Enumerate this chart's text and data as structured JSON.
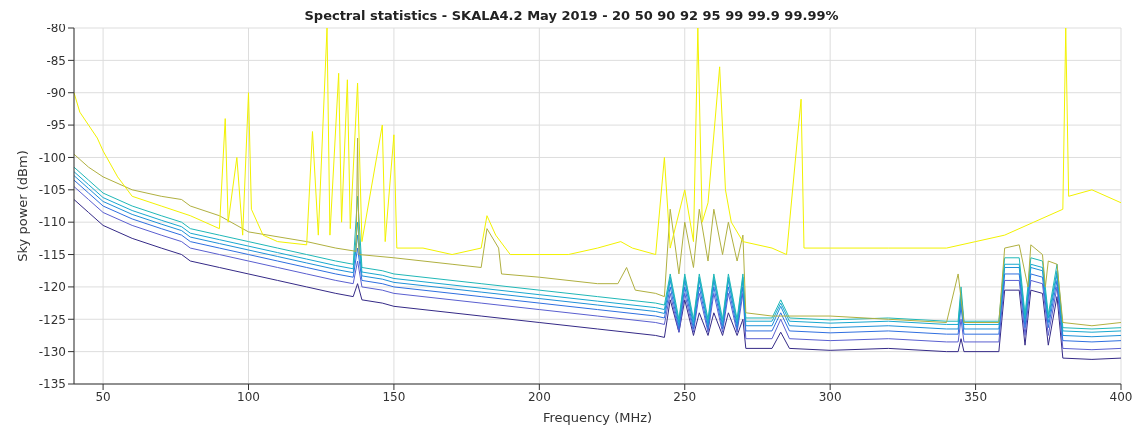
{
  "chart_data": {
    "type": "line",
    "title": "Spectral statistics - SKALA4.2 May 2019 - 20 50 90 92 95 99 99.9 99.99%",
    "xlabel": "Frequency (MHz)",
    "ylabel": "Sky power (dBm)",
    "xlim": [
      40,
      400
    ],
    "xticks": [
      50,
      100,
      150,
      200,
      250,
      300,
      350,
      400
    ],
    "ylim": [
      -135,
      -80
    ],
    "yticks": [
      -135,
      -130,
      -125,
      -120,
      -115,
      -110,
      -105,
      -100,
      -95,
      -90,
      -85,
      -80
    ],
    "grid": true,
    "legend": false,
    "marker": "none",
    "line_style": "solid",
    "x": [
      40,
      45,
      50,
      60,
      70,
      77,
      80,
      90,
      95,
      100,
      110,
      120,
      130,
      136,
      137.5,
      139,
      146,
      150,
      180,
      200,
      220,
      240,
      243,
      245,
      248,
      250,
      253,
      255,
      258,
      260,
      263,
      265,
      268,
      270,
      271,
      280,
      283,
      286,
      300,
      320,
      340,
      344,
      345,
      346,
      358,
      360,
      365,
      367,
      369,
      373,
      375,
      378,
      380,
      390,
      400
    ],
    "series": [
      {
        "color": "#352a87",
        "values": [
          -106.5,
          -108.5,
          -110.5,
          -112.5,
          -114,
          -115,
          -116,
          -117,
          -117.5,
          -118,
          -119,
          -120,
          -121,
          -121.5,
          -119.5,
          -122,
          -122.5,
          -123,
          -124.5,
          -125.5,
          -126.5,
          -127.5,
          -127.8,
          -122,
          -127,
          -122,
          -127.5,
          -124,
          -127.5,
          -124,
          -127.5,
          -124,
          -127.5,
          -125,
          -129.5,
          -129.5,
          -127,
          -129.5,
          -129.8,
          -129.5,
          -130,
          -130,
          -128,
          -130,
          -130,
          -120.5,
          -120.5,
          -129,
          -120.5,
          -121,
          -129,
          -121.5,
          -131,
          -131.2,
          -131
        ]
      },
      {
        "color": "#5a5fd0",
        "values": [
          -104.5,
          -106.5,
          -108.5,
          -110.5,
          -112,
          -113,
          -114,
          -115,
          -115.5,
          -116,
          -117,
          -118,
          -119,
          -119.5,
          -116,
          -120,
          -120.5,
          -121,
          -122.5,
          -123.5,
          -124.5,
          -125.5,
          -125.8,
          -121,
          -127,
          -121,
          -127,
          -121,
          -127,
          -121,
          -127,
          -121,
          -127,
          -121,
          -128,
          -128,
          -125,
          -128,
          -128.3,
          -128,
          -128.5,
          -128.5,
          -125,
          -128.5,
          -128.5,
          -119,
          -119,
          -127.5,
          -119,
          -119.5,
          -127.5,
          -120,
          -129.5,
          -129.7,
          -129.5
        ]
      },
      {
        "color": "#2f6fe0",
        "values": [
          -103.5,
          -105.5,
          -107.5,
          -109.5,
          -111,
          -112,
          -113,
          -114,
          -114.5,
          -115,
          -116,
          -117,
          -118,
          -118.5,
          -114,
          -119,
          -119.5,
          -120,
          -121.5,
          -122.5,
          -123.5,
          -124.5,
          -124.8,
          -120,
          -126.5,
          -120,
          -126.5,
          -120,
          -126.5,
          -120,
          -126.5,
          -120,
          -126.5,
          -120,
          -126.8,
          -126.8,
          -124,
          -126.8,
          -127.1,
          -126.8,
          -127.3,
          -127.3,
          -123,
          -127.3,
          -127.3,
          -118,
          -118,
          -126.3,
          -118,
          -118.5,
          -126.3,
          -119,
          -128.3,
          -128.5,
          -128.3
        ]
      },
      {
        "color": "#1e90d8",
        "values": [
          -102.8,
          -104.8,
          -106.8,
          -108.8,
          -110.3,
          -111.3,
          -112.3,
          -113.3,
          -113.8,
          -114.3,
          -115.3,
          -116.3,
          -117.3,
          -117.8,
          -112,
          -118.3,
          -118.8,
          -119.3,
          -120.8,
          -121.8,
          -122.8,
          -123.8,
          -124.1,
          -119,
          -126,
          -119,
          -126,
          -119,
          -126,
          -119,
          -126,
          -119,
          -126,
          -119,
          -126,
          -126,
          -123,
          -126,
          -126.3,
          -126,
          -126.5,
          -126.5,
          -122,
          -126.5,
          -126.5,
          -117,
          -117,
          -125.5,
          -117,
          -117.5,
          -125.5,
          -118,
          -127.5,
          -127.7,
          -127.5
        ]
      },
      {
        "color": "#18a8d0",
        "values": [
          -102.2,
          -104.2,
          -106.2,
          -108.2,
          -109.7,
          -110.7,
          -111.7,
          -112.7,
          -113.2,
          -113.7,
          -114.7,
          -115.7,
          -116.7,
          -117.2,
          -110,
          -117.7,
          -118.2,
          -118.7,
          -120.2,
          -121.2,
          -122.2,
          -123.2,
          -123.5,
          -118.5,
          -125.5,
          -118.5,
          -125.5,
          -118.5,
          -125.5,
          -118.5,
          -125.5,
          -118.5,
          -125.5,
          -118.5,
          -125.3,
          -125.3,
          -122.5,
          -125.3,
          -125.6,
          -125.3,
          -125.8,
          -125.8,
          -121,
          -125.8,
          -125.8,
          -116.5,
          -116.5,
          -124.8,
          -116.5,
          -117,
          -124.8,
          -117.5,
          -126.8,
          -127,
          -126.8
        ]
      },
      {
        "color": "#20b8b8",
        "values": [
          -101.5,
          -103.5,
          -105.5,
          -107.5,
          -109,
          -110,
          -111,
          -112,
          -112.5,
          -113,
          -114,
          -115,
          -116,
          -116.5,
          -106,
          -117,
          -117.5,
          -118,
          -119.5,
          -120.5,
          -121.5,
          -122.5,
          -122.8,
          -118,
          -125,
          -118,
          -125,
          -118,
          -125,
          -118,
          -125,
          -118,
          -125,
          -118,
          -124.8,
          -124.8,
          -122,
          -124.8,
          -125.1,
          -124.8,
          -125.3,
          -125.3,
          -120,
          -125.3,
          -125.3,
          -115.5,
          -115.5,
          -124.3,
          -115.5,
          -116,
          -124.3,
          -116.5,
          -126.3,
          -126.5,
          -126.3
        ]
      },
      {
        "color": "#b0b040",
        "x": [
          40,
          45,
          50,
          60,
          70,
          77,
          80,
          90,
          100,
          120,
          130,
          137,
          137.5,
          138,
          150,
          170,
          180,
          182,
          186,
          187,
          200,
          220,
          227,
          230,
          233,
          240,
          243,
          245,
          248,
          250,
          253,
          255,
          258,
          260,
          263,
          265,
          268,
          270,
          271,
          280,
          300,
          320,
          340,
          344,
          346,
          358,
          360,
          365,
          368,
          369,
          373,
          374,
          375,
          378,
          380,
          390,
          400
        ],
        "values": [
          -99.5,
          -101.5,
          -103,
          -105,
          -106,
          -106.5,
          -107.5,
          -109,
          -111.5,
          -113,
          -114,
          -114.5,
          -97,
          -115,
          -115.5,
          -116.5,
          -117,
          -111,
          -114,
          -118,
          -118.5,
          -119.5,
          -119.5,
          -117,
          -120.5,
          -121,
          -121.5,
          -108,
          -118,
          -110,
          -117,
          -108,
          -116,
          -108,
          -115,
          -110,
          -116,
          -112,
          -124,
          -124.5,
          -124.5,
          -125,
          -125.5,
          -118,
          -125.5,
          -125.5,
          -114,
          -113.5,
          -120,
          -113.5,
          -115,
          -120,
          -116,
          -116.5,
          -125.5,
          -126,
          -125.5
        ]
      },
      {
        "color": "#f2f200",
        "x": [
          40,
          42,
          45,
          48,
          50,
          55,
          60,
          70,
          80,
          90,
          92,
          93,
          96,
          98,
          100,
          101,
          105,
          110,
          120,
          122,
          124,
          127,
          128,
          131,
          132,
          134,
          135,
          137.5,
          139,
          146,
          147,
          150,
          151,
          160,
          170,
          180,
          182,
          185,
          190,
          200,
          210,
          220,
          228,
          232,
          240,
          243,
          245,
          250,
          253,
          254.5,
          256,
          258,
          262,
          264,
          266,
          270,
          280,
          285,
          290,
          291,
          300,
          320,
          340,
          350,
          360,
          370,
          380,
          381,
          382,
          390,
          400
        ],
        "values": [
          -90,
          -93,
          -95,
          -97,
          -99,
          -103,
          -106,
          -107.5,
          -109,
          -111,
          -94,
          -110,
          -100,
          -112,
          -90,
          -108,
          -112,
          -113,
          -113.5,
          -96,
          -112,
          -80,
          -112,
          -87,
          -110,
          -88,
          -111,
          -88.5,
          -113,
          -95,
          -113,
          -96.5,
          -114,
          -114,
          -115,
          -114,
          -109,
          -112,
          -115,
          -115,
          -115,
          -114,
          -113,
          -114,
          -115,
          -100,
          -114,
          -105,
          -113,
          -80,
          -110,
          -107,
          -86,
          -105,
          -110,
          -113,
          -114,
          -115,
          -91,
          -114,
          -114,
          -114,
          -114,
          -113,
          -112,
          -110,
          -108,
          -80,
          -106,
          -105,
          -107
        ]
      }
    ]
  }
}
